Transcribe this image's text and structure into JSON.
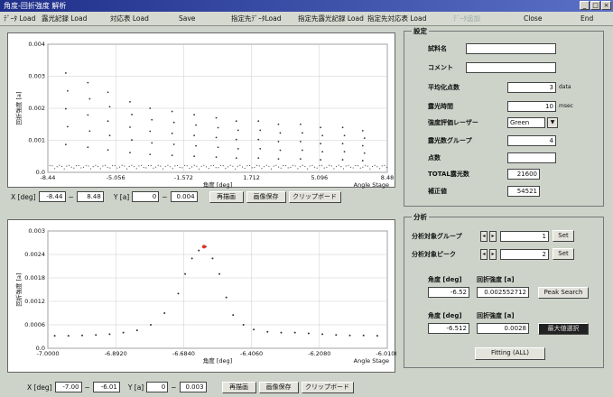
{
  "window": {
    "title": "角度-回折強度 解析",
    "min": "_",
    "max": "□",
    "close": "×"
  },
  "toolbar": {
    "items": [
      "ﾃﾞｰﾀ Load",
      "露光記録 Load",
      "対応表 Load",
      "Save",
      "指定先ﾃﾞｰﾀLoad",
      "指定先露光記録 Load",
      "指定先対応表 Load",
      "ﾃﾞｰﾀ追加",
      "Close",
      "End"
    ]
  },
  "top_chart": {
    "ylabel": "回折強度 [a]",
    "xlabel": "角度 [deg]",
    "axis_note": "Angle Stage",
    "chart_data": {
      "type": "scatter",
      "xlim": [
        -8.44,
        8.48
      ],
      "ylim": [
        0.0,
        0.004
      ],
      "yticks": [
        "0.004",
        "0.003",
        "0.002",
        "0.001",
        "0.0"
      ],
      "xticks": [
        "-8.44",
        "-5.056",
        "-1.572",
        "1.712",
        "5.096",
        "8.48"
      ],
      "peaks": [
        {
          "x": -7.5,
          "y": 0.0031
        },
        {
          "x": -6.4,
          "y": 0.0028
        },
        {
          "x": -5.4,
          "y": 0.0025
        },
        {
          "x": -4.3,
          "y": 0.0022
        },
        {
          "x": -3.3,
          "y": 0.002
        },
        {
          "x": -2.2,
          "y": 0.0019
        },
        {
          "x": -1.1,
          "y": 0.0018
        },
        {
          "x": 0.0,
          "y": 0.0017
        },
        {
          "x": 1.0,
          "y": 0.0016
        },
        {
          "x": 2.1,
          "y": 0.0016
        },
        {
          "x": 3.1,
          "y": 0.0015
        },
        {
          "x": 4.2,
          "y": 0.0015
        },
        {
          "x": 5.2,
          "y": 0.0014
        },
        {
          "x": 6.3,
          "y": 0.0014
        },
        {
          "x": 7.3,
          "y": 0.0013
        }
      ],
      "baseline": 0.0001
    },
    "range": {
      "x_label": "X [deg]",
      "x_from": "-8.44",
      "x_to": "8.48",
      "y_label": "Y [a]",
      "y_from": "0",
      "y_to": "0.004"
    },
    "buttons": [
      "再描画",
      "画像保存",
      "クリップボード"
    ]
  },
  "bottom_chart": {
    "ylabel": "回折強度 [a]",
    "xlabel": "角度 [deg]",
    "axis_note": "Angle Stage",
    "chart_data": {
      "type": "scatter",
      "xlim": [
        -7.0,
        -6.0108
      ],
      "ylim": [
        0.0,
        0.003
      ],
      "yticks": [
        "0.003",
        "0.0024",
        "0.0018",
        "0.0012",
        "0.0006",
        "0.0"
      ],
      "xticks": [
        "-7.0000",
        "-6.8920",
        "-6.6840",
        "-6.4060",
        "-6.2080",
        "-6.0108"
      ],
      "points": [
        [
          -6.98,
          0.00032
        ],
        [
          -6.94,
          0.00032
        ],
        [
          -6.9,
          0.00033
        ],
        [
          -6.86,
          0.00034
        ],
        [
          -6.82,
          0.00036
        ],
        [
          -6.78,
          0.0004
        ],
        [
          -6.74,
          0.00046
        ],
        [
          -6.7,
          0.0006
        ],
        [
          -6.66,
          0.0009
        ],
        [
          -6.62,
          0.0014
        ],
        [
          -6.6,
          0.0019
        ],
        [
          -6.58,
          0.0023
        ],
        [
          -6.56,
          0.0025
        ],
        [
          -6.54,
          0.0026
        ],
        [
          -6.52,
          0.0023
        ],
        [
          -6.5,
          0.0019
        ],
        [
          -6.48,
          0.0013
        ],
        [
          -6.46,
          0.00085
        ],
        [
          -6.43,
          0.0006
        ],
        [
          -6.4,
          0.00048
        ],
        [
          -6.36,
          0.00042
        ],
        [
          -6.32,
          0.0004
        ],
        [
          -6.28,
          0.0004
        ],
        [
          -6.24,
          0.00038
        ],
        [
          -6.2,
          0.00036
        ],
        [
          -6.16,
          0.00034
        ],
        [
          -6.12,
          0.00033
        ],
        [
          -6.08,
          0.00033
        ],
        [
          -6.04,
          0.00032
        ]
      ],
      "highlight": [
        -6.545,
        0.0026
      ]
    },
    "range": {
      "x_label": "X [deg]",
      "x_from": "-7.00",
      "x_to": "-6.01",
      "y_label": "Y [a]",
      "y_from": "0",
      "y_to": "0.003"
    },
    "buttons": [
      "再描画",
      "画像保存",
      "クリップボード"
    ]
  },
  "settings": {
    "title": "設定",
    "fields": [
      {
        "label": "試料名",
        "value": ""
      },
      {
        "label": "コメント",
        "value": ""
      },
      {
        "label": "平均化点数",
        "value": "3",
        "unit": "data"
      },
      {
        "label": "露光時間",
        "value": "10",
        "unit": "msec"
      },
      {
        "label": "強度評価レーザー",
        "value": "Green"
      },
      {
        "label": "露光数グループ",
        "value": "4"
      },
      {
        "label": "点数",
        "value": ""
      },
      {
        "label": "TOTAL露光数",
        "value": "21600"
      },
      {
        "label": "補正値",
        "value": "54521"
      }
    ]
  },
  "analysis": {
    "title": "分析",
    "group_label": "分析対象グループ",
    "group_value": "1",
    "peak_label": "分析対象ピーク",
    "peak_value": "2",
    "set_label": "Set",
    "angle_label": "角度 [deg]",
    "intensity_label": "回折強度 [a]",
    "angle_value_1": "-6.52",
    "intensity_value_1": "0.002552712",
    "peak_search_label": "Peak Search",
    "angle_value_2": "-6.512",
    "intensity_value_2": "0.0028",
    "extra_button": "最大値選択",
    "fitting_button": "Fitting (ALL)"
  }
}
